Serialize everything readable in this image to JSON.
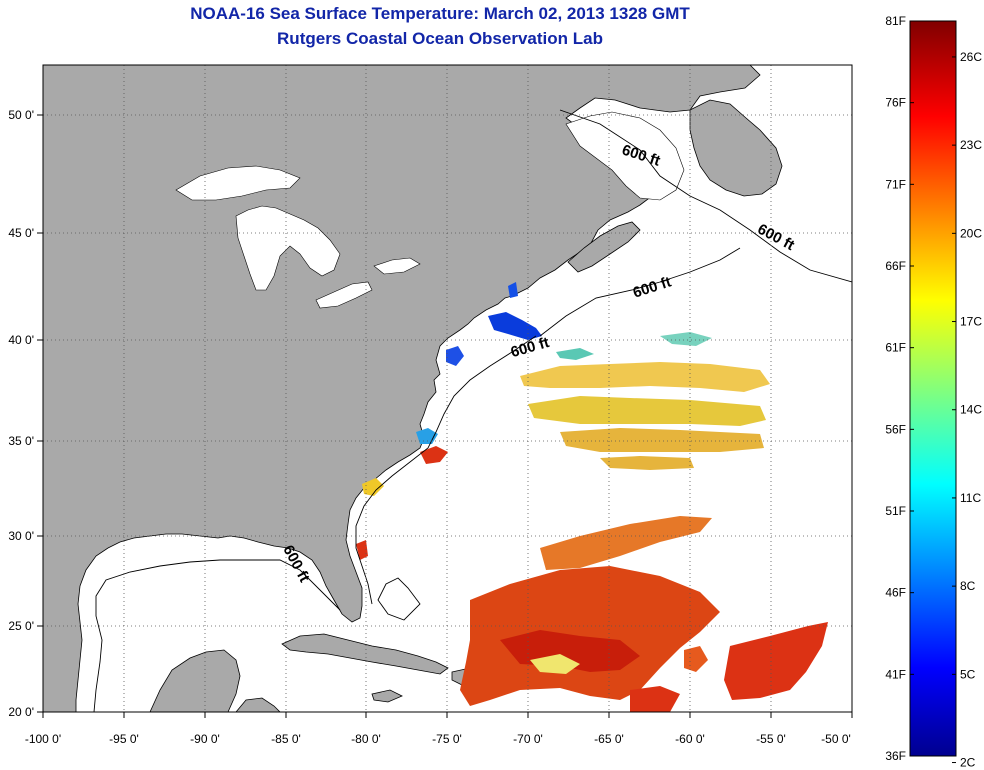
{
  "header": {
    "title": "NOAA-16 Sea Surface Temperature:  March 02, 2013 1328 GMT",
    "subtitle": "Rutgers Coastal Ocean Observation Lab"
  },
  "map": {
    "lon_range": [
      -100,
      -50
    ],
    "lat_range": [
      20,
      52.5
    ],
    "lon_ticks": [
      "-100 0'",
      "-95 0'",
      "-90 0'",
      "-85 0'",
      "-80 0'",
      "-75 0'",
      "-70 0'",
      "-65 0'",
      "-60 0'",
      "-55 0'",
      "-50 0'"
    ],
    "lat_ticks": [
      "50 0'",
      "45 0'",
      "40 0'",
      "35 0'",
      "30 0'",
      "25 0'",
      "20 0'"
    ],
    "lat_tick_values": [
      50,
      45,
      40,
      35,
      30,
      25,
      20
    ],
    "contour_labels": [
      "600 ft",
      "600 ft",
      "600 ft",
      "600 ft",
      "600 ft"
    ],
    "land_color": "#a9a9a9",
    "grid": "dotted"
  },
  "colorbar": {
    "f_labels": [
      "81F",
      "76F",
      "71F",
      "66F",
      "61F",
      "56F",
      "51F",
      "46F",
      "41F",
      "36F"
    ],
    "c_labels": [
      "26C",
      "23C",
      "20C",
      "17C",
      "14C",
      "11C",
      "8C",
      "5C",
      "2C"
    ],
    "colormap": "jet"
  }
}
